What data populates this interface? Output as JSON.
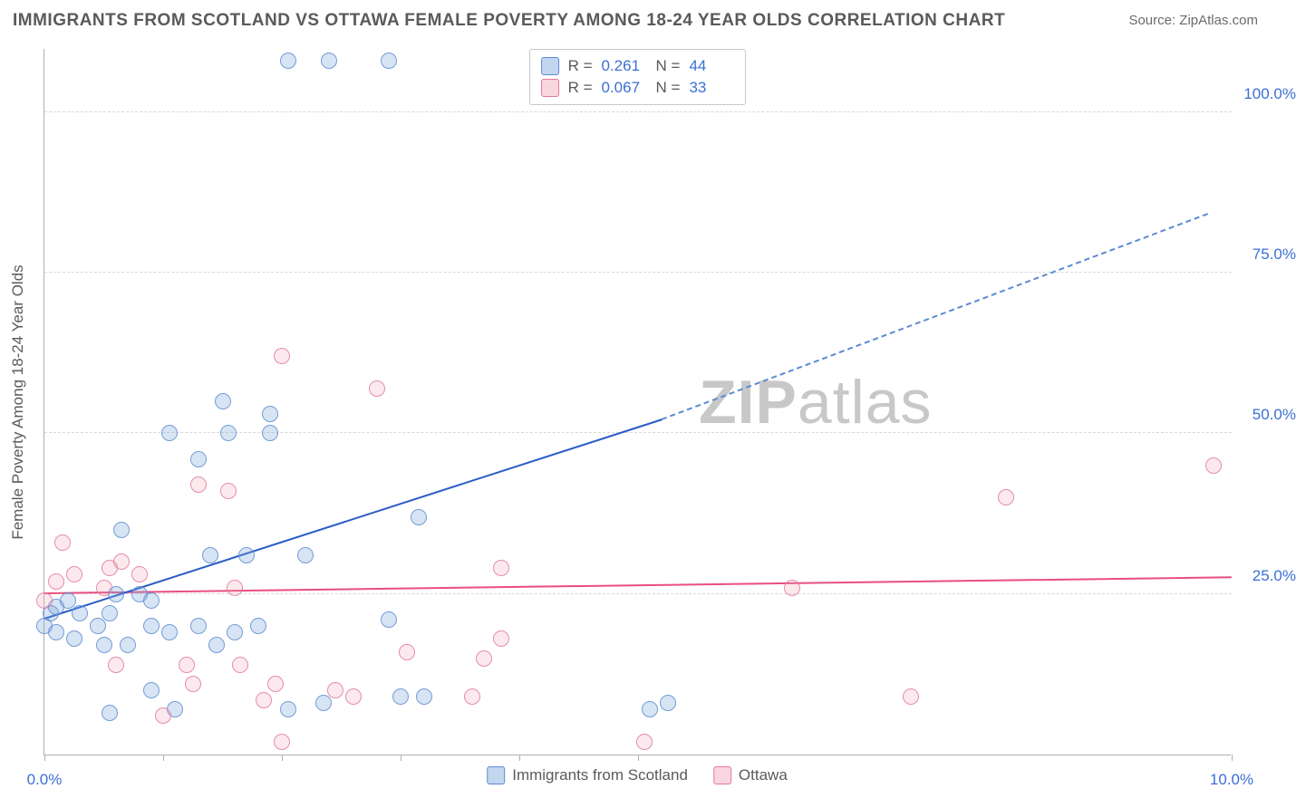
{
  "title": "IMMIGRANTS FROM SCOTLAND VS OTTAWA FEMALE POVERTY AMONG 18-24 YEAR OLDS CORRELATION CHART",
  "source": "Source: ZipAtlas.com",
  "watermark_a": "ZIP",
  "watermark_b": "atlas",
  "chart": {
    "type": "scatter-correlation",
    "xlabel": "",
    "ylabel": "Female Poverty Among 18-24 Year Olds",
    "xlim": [
      0,
      10
    ],
    "ylim": [
      0,
      110
    ],
    "x_ticks": [
      0,
      1,
      2,
      3,
      4,
      5,
      10
    ],
    "x_tick_labels": {
      "0": "0.0%",
      "10": "10.0%"
    },
    "y_grid": [
      25,
      50,
      75,
      100
    ],
    "y_tick_labels": {
      "25": "25.0%",
      "50": "50.0%",
      "75": "75.0%",
      "100": "100.0%"
    },
    "background_color": "#ffffff",
    "grid_color": "#d8d8d8",
    "axis_color": "#b0b0b0",
    "label_color": "#5a5a5a",
    "tick_label_color": "#3b6fd6",
    "series": [
      {
        "name": "Immigrants from Scotland",
        "key": "blue",
        "marker_color": "#5b8bd0",
        "fill_color": "rgba(120,165,220,0.35)",
        "trend_color": "#2a5bc7",
        "r": "0.261",
        "n": "44",
        "trend": {
          "x1": 0.0,
          "y1": 21.0,
          "x2": 5.2,
          "y2": 52.0,
          "x2dash": 9.8,
          "y2dash": 84.0
        },
        "points": [
          [
            2.05,
            108
          ],
          [
            2.4,
            108
          ],
          [
            2.9,
            108
          ],
          [
            0.65,
            35
          ],
          [
            1.5,
            55
          ],
          [
            1.05,
            50
          ],
          [
            1.9,
            53
          ],
          [
            1.55,
            50
          ],
          [
            1.9,
            50
          ],
          [
            1.3,
            46
          ],
          [
            1.4,
            31
          ],
          [
            1.7,
            31
          ],
          [
            2.2,
            31
          ],
          [
            3.15,
            37
          ],
          [
            0.0,
            20
          ],
          [
            0.05,
            22
          ],
          [
            0.1,
            23
          ],
          [
            0.1,
            19
          ],
          [
            0.2,
            24
          ],
          [
            0.3,
            22
          ],
          [
            0.45,
            20
          ],
          [
            0.55,
            22
          ],
          [
            0.25,
            18
          ],
          [
            0.5,
            17
          ],
          [
            0.7,
            17
          ],
          [
            0.9,
            20
          ],
          [
            0.6,
            25
          ],
          [
            0.8,
            25
          ],
          [
            0.9,
            24
          ],
          [
            1.05,
            19
          ],
          [
            1.3,
            20
          ],
          [
            1.45,
            17
          ],
          [
            1.6,
            19
          ],
          [
            1.8,
            20
          ],
          [
            2.9,
            21
          ],
          [
            0.9,
            10
          ],
          [
            1.1,
            7
          ],
          [
            0.55,
            6.5
          ],
          [
            2.05,
            7
          ],
          [
            2.35,
            8
          ],
          [
            3.0,
            9
          ],
          [
            3.2,
            9
          ],
          [
            5.1,
            7
          ],
          [
            5.25,
            8
          ]
        ]
      },
      {
        "name": "Ottawa",
        "key": "pink",
        "marker_color": "#e17a9b",
        "fill_color": "rgba(240,150,175,0.25)",
        "trend_color": "#e94f7e",
        "r": "0.067",
        "n": "33",
        "trend": {
          "x1": 0.0,
          "y1": 25.0,
          "x2": 10.0,
          "y2": 27.5
        },
        "points": [
          [
            2.0,
            62
          ],
          [
            2.8,
            57
          ],
          [
            1.3,
            42
          ],
          [
            1.55,
            41
          ],
          [
            0.65,
            30
          ],
          [
            0.15,
            33
          ],
          [
            8.1,
            40
          ],
          [
            9.85,
            45
          ],
          [
            6.3,
            26
          ],
          [
            7.3,
            9
          ],
          [
            0.0,
            24
          ],
          [
            0.1,
            27
          ],
          [
            0.25,
            28
          ],
          [
            0.5,
            26
          ],
          [
            0.55,
            29
          ],
          [
            0.8,
            28
          ],
          [
            1.6,
            26
          ],
          [
            3.85,
            29
          ],
          [
            3.05,
            16
          ],
          [
            3.7,
            15
          ],
          [
            3.85,
            18
          ],
          [
            3.6,
            9
          ],
          [
            2.6,
            9
          ],
          [
            2.45,
            10
          ],
          [
            1.95,
            11
          ],
          [
            1.2,
            14
          ],
          [
            1.65,
            14
          ],
          [
            0.6,
            14
          ],
          [
            1.85,
            8.5
          ],
          [
            2.0,
            2
          ],
          [
            5.05,
            2
          ],
          [
            1.0,
            6
          ],
          [
            1.25,
            11
          ]
        ]
      }
    ]
  },
  "legend_top": {
    "r_label": "R =",
    "n_label": "N ="
  },
  "legend_bottom": [
    "Immigrants from Scotland",
    "Ottawa"
  ]
}
